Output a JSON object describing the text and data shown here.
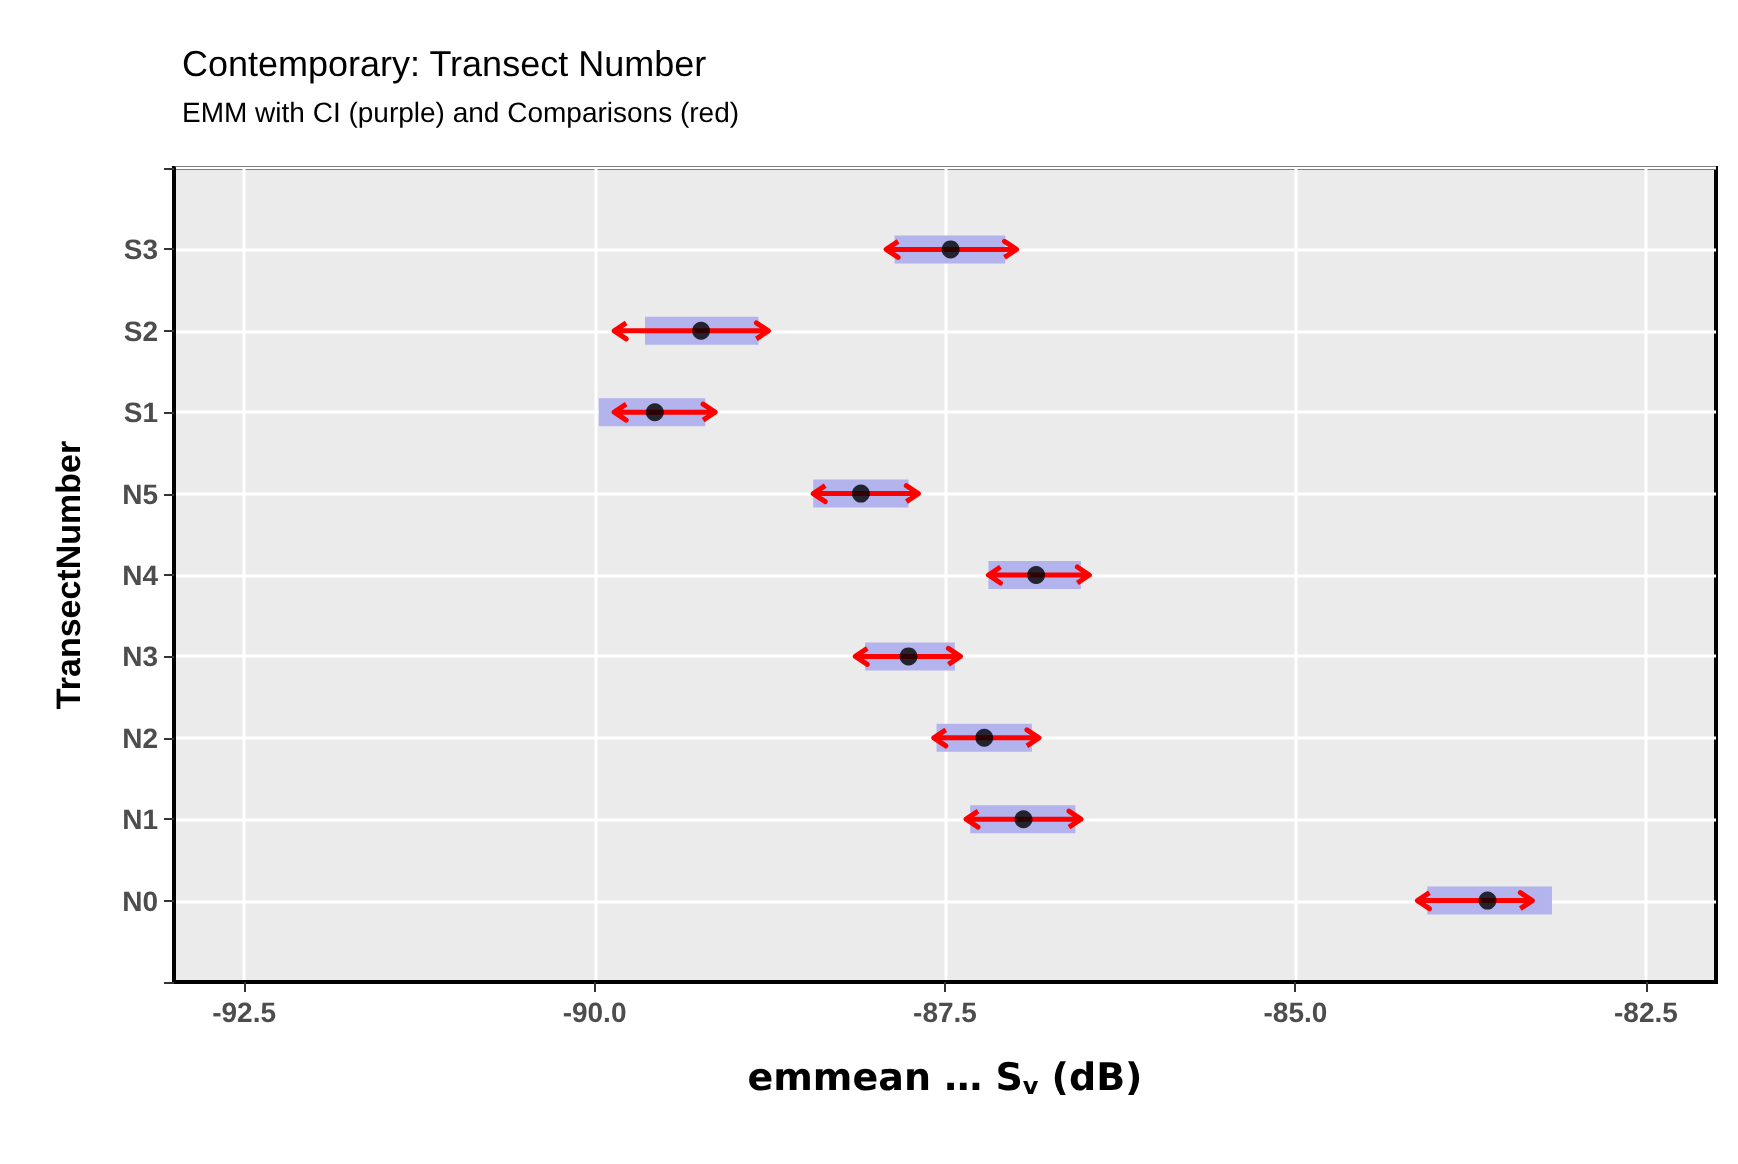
{
  "chart_data": {
    "type": "bar",
    "orientation": "horizontal",
    "title": "Contemporary: Transect Number",
    "subtitle": "EMM with CI (purple) and Comparisons (red)",
    "xlabel": "emmean … S$_{v}$ (dB)",
    "ylabel": "TransectNumber",
    "categories": [
      "S3",
      "S2",
      "S1",
      "N5",
      "N4",
      "N3",
      "N2",
      "N1",
      "N0"
    ],
    "series": [
      {
        "type": "bar",
        "color": "#b3b3ee",
        "base": [
          -87.86,
          -89.64,
          -89.97,
          -88.44,
          -87.19,
          -88.07,
          -87.56,
          -87.32,
          -84.06
        ],
        "values": [
          0.79,
          0.81,
          0.76,
          0.68,
          0.66,
          0.64,
          0.68,
          0.75,
          0.89
        ]
      },
      {
        "type": "scatter",
        "color": "#000000",
        "values": [
          -87.46,
          -89.24,
          -89.57,
          -88.1,
          -86.85,
          -87.76,
          -87.22,
          -86.94,
          -83.63
        ],
        "errors": [
          [
            -87.92,
            -86.99
          ],
          [
            -89.86,
            -88.76
          ],
          [
            -89.86,
            -89.14
          ],
          [
            -88.44,
            -87.69
          ],
          [
            -87.19,
            -86.47
          ],
          [
            -88.14,
            -87.39
          ],
          [
            -87.58,
            -86.83
          ],
          [
            -87.35,
            -86.53
          ],
          [
            -84.13,
            -83.31
          ]
        ]
      }
    ],
    "xlim": [
      -93.0,
      -82.0
    ],
    "xticks": [
      -92.5,
      {
        "value": -90,
        "label": "-90.0"
      },
      -87.5,
      {
        "value": -85,
        "label": "-85.0"
      },
      -82.5
    ],
    "grid": true,
    "marker": "circle"
  }
}
